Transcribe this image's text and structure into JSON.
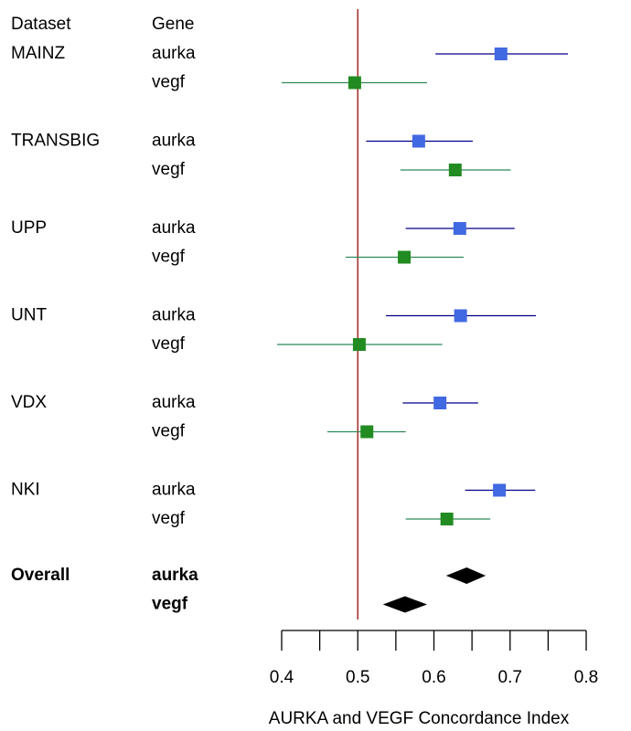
{
  "chart_data": {
    "type": "forest",
    "headers": [
      "Dataset",
      "Gene"
    ],
    "groups": [
      {
        "dataset": "MAINZ",
        "genes": [
          "aurka",
          "vegf"
        ],
        "estimates": [
          0.688,
          0.496
        ],
        "lower": [
          0.602,
          0.4
        ],
        "upper": [
          0.776,
          0.591
        ]
      },
      {
        "dataset": "TRANSBIG",
        "genes": [
          "aurka",
          "vegf"
        ],
        "estimates": [
          0.58,
          0.628
        ],
        "lower": [
          0.511,
          0.556
        ],
        "upper": [
          0.651,
          0.701
        ]
      },
      {
        "dataset": "UPP",
        "genes": [
          "aurka",
          "vegf"
        ],
        "estimates": [
          0.634,
          0.561
        ],
        "lower": [
          0.563,
          0.484
        ],
        "upper": [
          0.706,
          0.639
        ]
      },
      {
        "dataset": "UNT",
        "genes": [
          "aurka",
          "vegf"
        ],
        "estimates": [
          0.635,
          0.502
        ],
        "lower": [
          0.537,
          0.394
        ],
        "upper": [
          0.734,
          0.611
        ]
      },
      {
        "dataset": "VDX",
        "genes": [
          "aurka",
          "vegf"
        ],
        "estimates": [
          0.608,
          0.512
        ],
        "lower": [
          0.559,
          0.46
        ],
        "upper": [
          0.658,
          0.563
        ]
      },
      {
        "dataset": "NKI",
        "genes": [
          "aurka",
          "vegf"
        ],
        "estimates": [
          0.686,
          0.617
        ],
        "lower": [
          0.641,
          0.563
        ],
        "upper": [
          0.733,
          0.674
        ]
      }
    ],
    "summary": {
      "dataset": "Overall",
      "genes": [
        "aurka",
        "vegf"
      ],
      "estimates": [
        0.643,
        0.562
      ],
      "lower": [
        0.616,
        0.533
      ],
      "upper": [
        0.668,
        0.591
      ]
    },
    "point_colors": [
      "#4169e1",
      "#228b22"
    ],
    "line_colors": [
      "#00008b",
      "#2e8b57"
    ],
    "summary_color": "#000000",
    "ref_line": 0.5,
    "ref_color": "#a52a2a",
    "xlim": [
      0.4,
      0.8
    ],
    "xticks": [
      0.4,
      0.5,
      0.6,
      0.7,
      0.8
    ],
    "xminor_ticks": [
      0.45,
      0.55,
      0.65,
      0.75
    ],
    "xlabel": "AURKA and VEGF Concordance Index"
  }
}
